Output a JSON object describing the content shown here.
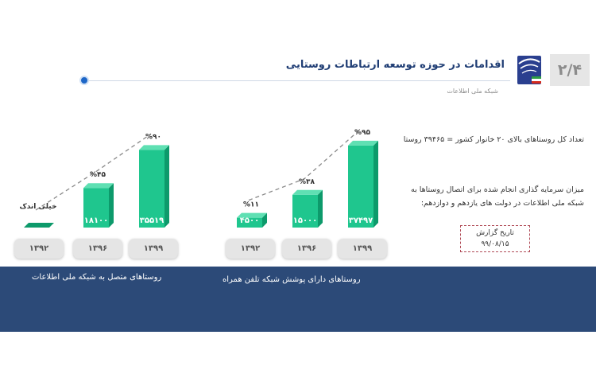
{
  "header": {
    "page_number": "۲/۴",
    "title": "اقدامات در حوزه توسعه ارتباطات روستایی",
    "subtitle": "شبکه ملی اطلاعات"
  },
  "info": {
    "total_villages": "تعداد کل روستاهای بالای ۲۰ خانوار کشور = ۳۹۴۶۵ روستا",
    "investment": "میزان سرمایه گذاری انجام شده برای اتصال روستاها به شبکه ملی اطلاعات در دولت های یازدهم و دوازدهم:",
    "report_label": "تاریخ گزارش",
    "report_date": "۹۹/۰۸/۱۵"
  },
  "colors": {
    "bar": "#1fc68e",
    "bar_side": "#0d9a6b",
    "band": "#2c4a78",
    "accent": "#1f3d74"
  },
  "chart_data": [
    {
      "type": "bar",
      "caption": "روستاهای متصل به شبکه ملی اطلاعات",
      "categories": [
        "۱۳۹۲",
        "۱۳۹۶",
        "۱۳۹۹"
      ],
      "values": [
        0,
        18100,
        35519
      ],
      "value_labels": [
        "",
        "۱۸۱۰۰",
        "۳۵۵۱۹"
      ],
      "percent_labels": [
        "خیلی اندک",
        "%۴۵",
        "%۹۰"
      ],
      "percents": [
        0,
        45,
        90
      ]
    },
    {
      "type": "bar",
      "caption": "روستاهای دارای پوشش شبکه تلفن همراه",
      "categories": [
        "۱۳۹۲",
        "۱۳۹۶",
        "۱۳۹۹"
      ],
      "values": [
        4500,
        15000,
        37497
      ],
      "value_labels": [
        "۴۵۰۰",
        "۱۵۰۰۰",
        "۳۷۴۹۷"
      ],
      "percent_labels": [
        "%۱۱",
        "%۳۸",
        "%۹۵"
      ],
      "percents": [
        11,
        38,
        95
      ]
    }
  ]
}
